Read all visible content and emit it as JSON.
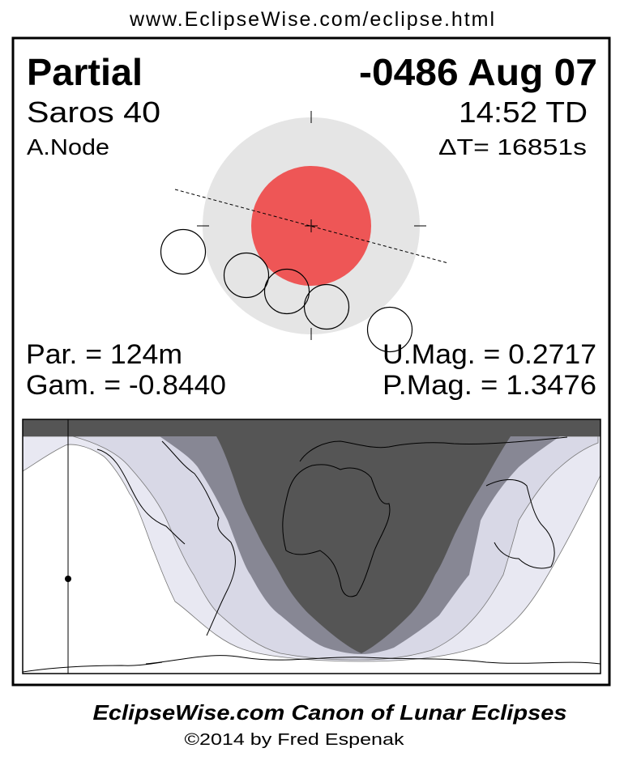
{
  "header": {
    "url": "www.EclipseWise.com/eclipse.html"
  },
  "eclipse": {
    "type": "Partial",
    "date": "-0486 Aug 07",
    "saros": "Saros  40",
    "time": "14:52 TD",
    "node": "A.Node",
    "delta_t": "ΔT=  16851s",
    "partial_duration": "Par. = 124m",
    "gamma": "Gam. = -0.8440",
    "umbral_magnitude": "U.Mag. = 0.2717",
    "penumbral_magnitude": "P.Mag. = 1.3476"
  },
  "colors": {
    "umbra": "#ee5656",
    "penumbra": "#e5e5e5",
    "map_night": "#555555",
    "map_partial": "#878794",
    "map_penumbral_inner": "#d8d8e6",
    "map_penumbral_outer": "#e8e8f2"
  },
  "footer": {
    "title": "EclipseWise.com Canon of Lunar Eclipses",
    "copyright": "©2014 by Fred Espenak"
  }
}
